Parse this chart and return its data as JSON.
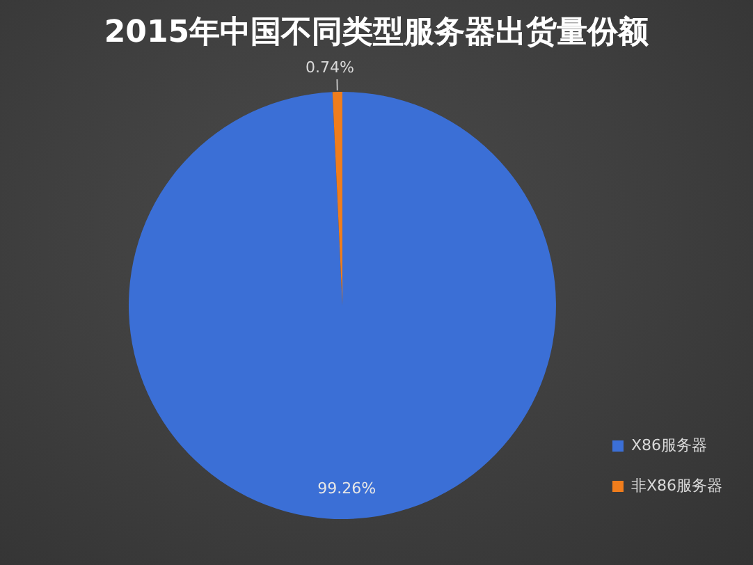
{
  "chart_data": {
    "type": "pie",
    "title": "2015年中国不同类型服务器出货量份额",
    "categories": [
      "X86服务器",
      "非X86服务器"
    ],
    "values": [
      99.26,
      0.74
    ],
    "colors": [
      "#3b6fd6",
      "#f07d1c"
    ],
    "value_labels": [
      "99.26%",
      "0.74%"
    ],
    "legend": "bottom right"
  }
}
